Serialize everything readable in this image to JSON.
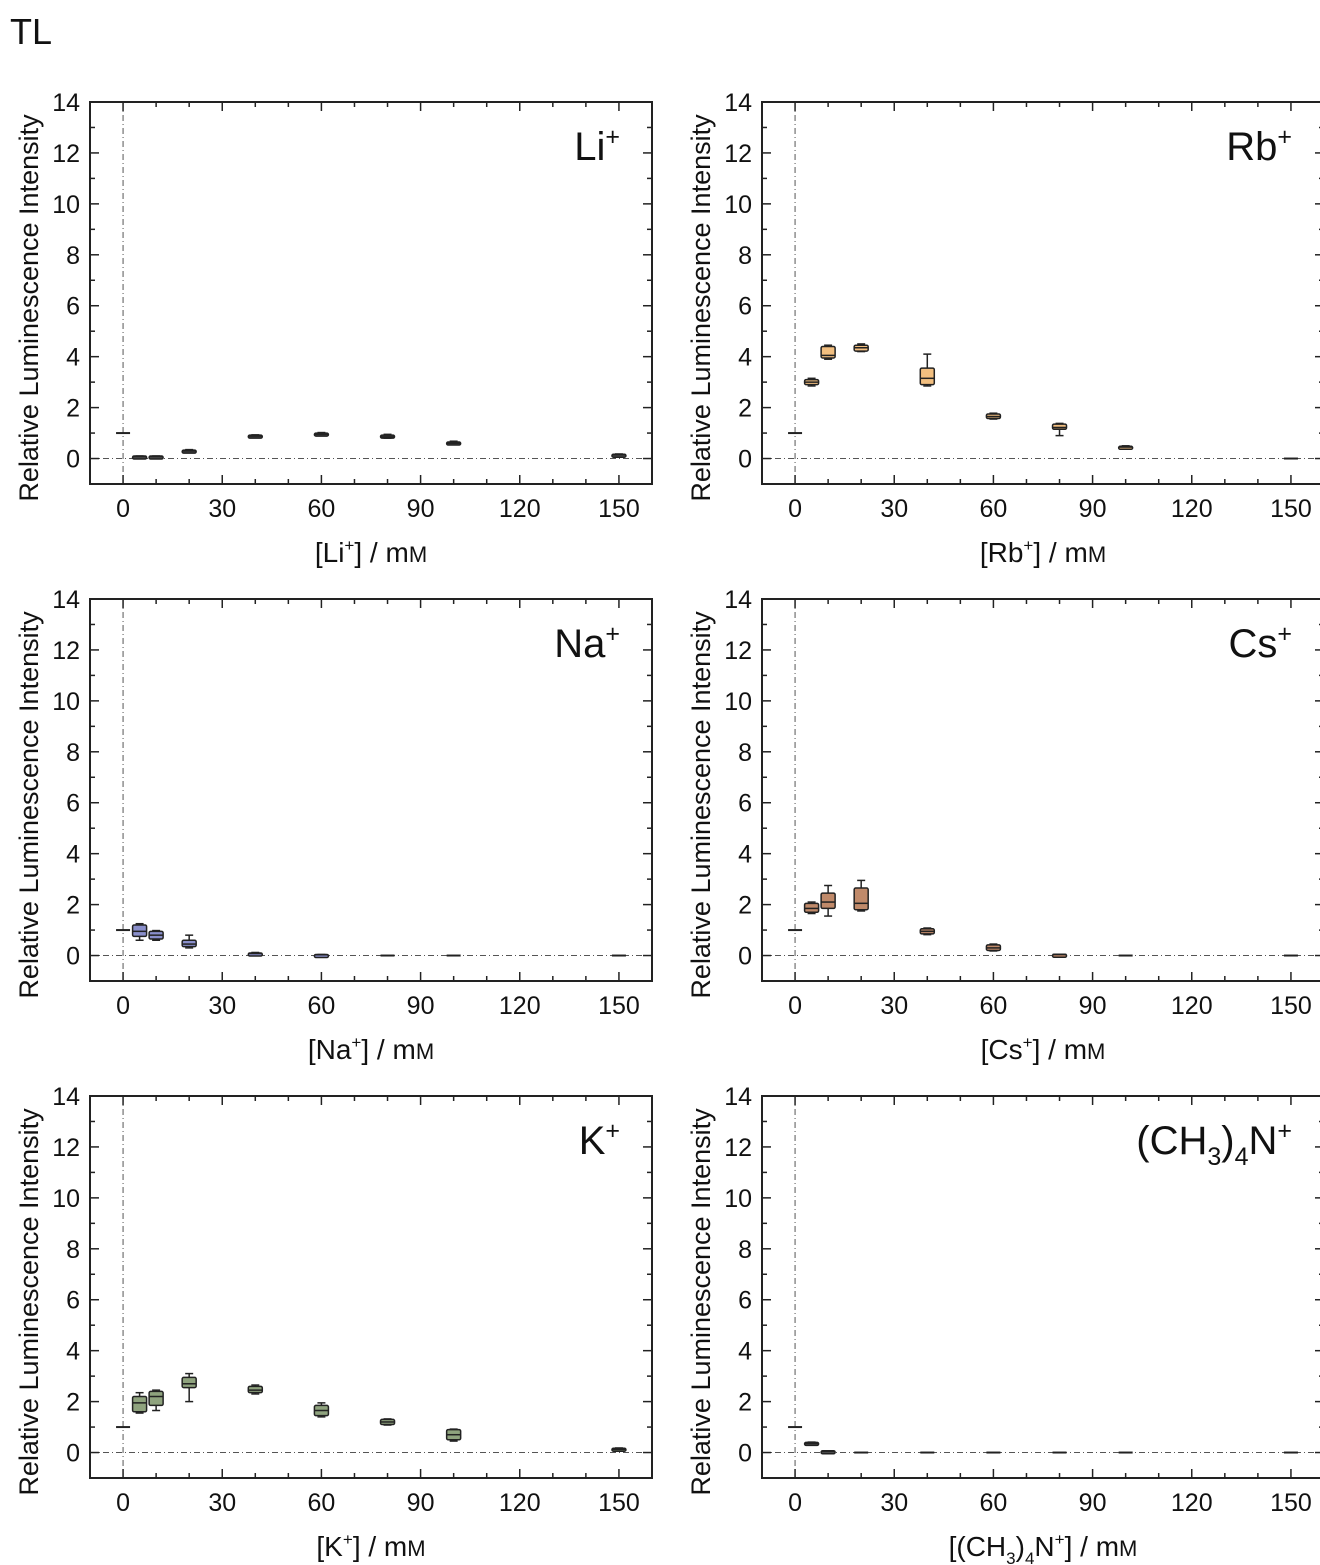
{
  "figure_label": "TL",
  "chart_data": [
    {
      "type": "box",
      "ion_label": {
        "base": "Li",
        "sup": "+"
      },
      "xlabel": {
        "pre": "[Li",
        "sup": "+",
        "post": "] / mM"
      },
      "ylabel": "Relative Luminescence Intensity",
      "xlim": [
        -10,
        160
      ],
      "ylim": [
        -1,
        14
      ],
      "xticks": [
        0,
        30,
        60,
        90,
        120,
        150
      ],
      "yticks": [
        0,
        2,
        4,
        6,
        8,
        10,
        12,
        14
      ],
      "reference_lines": {
        "x": 0,
        "y": 0
      },
      "fill_color": "#4a4a4a",
      "boxes": [
        {
          "x": 0,
          "min": 1.0,
          "q1": 1.0,
          "median": 1.0,
          "q3": 1.0,
          "max": 1.0
        },
        {
          "x": 5,
          "min": 0.08,
          "q1": 0.08,
          "median": 0.08,
          "q3": 0.1,
          "max": 0.1
        },
        {
          "x": 10,
          "min": 0.08,
          "q1": 0.08,
          "median": 0.08,
          "q3": 0.1,
          "max": 0.1
        },
        {
          "x": 20,
          "min": 0.25,
          "q1": 0.27,
          "median": 0.3,
          "q3": 0.33,
          "max": 0.35
        },
        {
          "x": 40,
          "min": 0.85,
          "q1": 0.87,
          "median": 0.88,
          "q3": 0.92,
          "max": 0.93
        },
        {
          "x": 60,
          "min": 0.9,
          "q1": 0.92,
          "median": 0.95,
          "q3": 1.0,
          "max": 1.02
        },
        {
          "x": 80,
          "min": 0.8,
          "q1": 0.82,
          "median": 0.85,
          "q3": 0.92,
          "max": 0.95
        },
        {
          "x": 100,
          "min": 0.55,
          "q1": 0.57,
          "median": 0.6,
          "q3": 0.65,
          "max": 0.68
        },
        {
          "x": 150,
          "min": 0.12,
          "q1": 0.13,
          "median": 0.15,
          "q3": 0.17,
          "max": 0.18
        }
      ]
    },
    {
      "type": "box",
      "ion_label": {
        "base": "Rb",
        "sup": "+"
      },
      "xlabel": {
        "pre": "[Rb",
        "sup": "+",
        "post": "] / mM"
      },
      "ylabel": "Relative Luminescence Intensity",
      "xlim": [
        -10,
        160
      ],
      "ylim": [
        -1,
        14
      ],
      "xticks": [
        0,
        30,
        60,
        90,
        120,
        150
      ],
      "yticks": [
        0,
        2,
        4,
        6,
        8,
        10,
        12,
        14
      ],
      "reference_lines": {
        "x": 0,
        "y": 0
      },
      "fill_color": "#f2bf80",
      "boxes": [
        {
          "x": 0,
          "min": 1.0,
          "q1": 1.0,
          "median": 1.0,
          "q3": 1.0,
          "max": 1.0
        },
        {
          "x": 5,
          "min": 2.85,
          "q1": 2.9,
          "median": 3.0,
          "q3": 3.1,
          "max": 3.15
        },
        {
          "x": 10,
          "min": 3.9,
          "q1": 3.95,
          "median": 4.05,
          "q3": 4.4,
          "max": 4.45
        },
        {
          "x": 20,
          "min": 4.2,
          "q1": 4.22,
          "median": 4.35,
          "q3": 4.45,
          "max": 4.5
        },
        {
          "x": 40,
          "min": 2.85,
          "q1": 2.9,
          "median": 3.15,
          "q3": 3.55,
          "max": 4.1
        },
        {
          "x": 60,
          "min": 1.55,
          "q1": 1.57,
          "median": 1.65,
          "q3": 1.75,
          "max": 1.78
        },
        {
          "x": 80,
          "min": 0.9,
          "q1": 1.15,
          "median": 1.22,
          "q3": 1.35,
          "max": 1.38
        },
        {
          "x": 100,
          "min": 0.42,
          "q1": 0.43,
          "median": 0.45,
          "q3": 0.48,
          "max": 0.5
        },
        {
          "x": 150,
          "min": 0.0,
          "q1": 0.0,
          "median": 0.0,
          "q3": 0.0,
          "max": 0.0
        }
      ]
    },
    {
      "type": "box",
      "ion_label": {
        "base": "Na",
        "sup": "+"
      },
      "xlabel": {
        "pre": "[Na",
        "sup": "+",
        "post": "] / mM"
      },
      "ylabel": "Relative Luminescence Intensity",
      "xlim": [
        -10,
        160
      ],
      "ylim": [
        -1,
        14
      ],
      "xticks": [
        0,
        30,
        60,
        90,
        120,
        150
      ],
      "yticks": [
        0,
        2,
        4,
        6,
        8,
        10,
        12,
        14
      ],
      "reference_lines": {
        "x": 0,
        "y": 0
      },
      "fill_color": "#8a8fcb",
      "boxes": [
        {
          "x": 0,
          "min": 1.0,
          "q1": 1.0,
          "median": 1.0,
          "q3": 1.0,
          "max": 1.0
        },
        {
          "x": 5,
          "min": 0.6,
          "q1": 0.75,
          "median": 0.95,
          "q3": 1.2,
          "max": 1.25
        },
        {
          "x": 10,
          "min": 0.6,
          "q1": 0.65,
          "median": 0.8,
          "q3": 0.95,
          "max": 0.98
        },
        {
          "x": 20,
          "min": 0.3,
          "q1": 0.35,
          "median": 0.45,
          "q3": 0.6,
          "max": 0.8
        },
        {
          "x": 40,
          "min": 0.05,
          "q1": 0.06,
          "median": 0.08,
          "q3": 0.1,
          "max": 0.12
        },
        {
          "x": 60,
          "min": 0.02,
          "q1": 0.02,
          "median": 0.03,
          "q3": 0.04,
          "max": 0.04
        },
        {
          "x": 80,
          "min": 0.0,
          "q1": 0.0,
          "median": 0.0,
          "q3": 0.0,
          "max": 0.0
        },
        {
          "x": 100,
          "min": 0.0,
          "q1": 0.0,
          "median": 0.0,
          "q3": 0.0,
          "max": 0.0
        },
        {
          "x": 150,
          "min": 0.0,
          "q1": 0.0,
          "median": 0.0,
          "q3": 0.0,
          "max": 0.0
        }
      ]
    },
    {
      "type": "box",
      "ion_label": {
        "base": "Cs",
        "sup": "+"
      },
      "xlabel": {
        "pre": "[Cs",
        "sup": "+",
        "post": "] / mM"
      },
      "ylabel": "Relative Luminescence Intensity",
      "xlim": [
        -10,
        160
      ],
      "ylim": [
        -1,
        14
      ],
      "xticks": [
        0,
        30,
        60,
        90,
        120,
        150
      ],
      "yticks": [
        0,
        2,
        4,
        6,
        8,
        10,
        12,
        14
      ],
      "reference_lines": {
        "x": 0,
        "y": 0
      },
      "fill_color": "#c08a6a",
      "boxes": [
        {
          "x": 0,
          "min": 1.0,
          "q1": 1.0,
          "median": 1.0,
          "q3": 1.0,
          "max": 1.0
        },
        {
          "x": 5,
          "min": 1.65,
          "q1": 1.7,
          "median": 1.85,
          "q3": 2.05,
          "max": 2.1
        },
        {
          "x": 10,
          "min": 1.55,
          "q1": 1.85,
          "median": 2.1,
          "q3": 2.45,
          "max": 2.75
        },
        {
          "x": 20,
          "min": 1.75,
          "q1": 1.8,
          "median": 2.05,
          "q3": 2.65,
          "max": 2.95
        },
        {
          "x": 40,
          "min": 0.82,
          "q1": 0.85,
          "median": 0.95,
          "q3": 1.05,
          "max": 1.08
        },
        {
          "x": 60,
          "min": 0.18,
          "q1": 0.2,
          "median": 0.3,
          "q3": 0.42,
          "max": 0.45
        },
        {
          "x": 80,
          "min": 0.03,
          "q1": 0.03,
          "median": 0.04,
          "q3": 0.05,
          "max": 0.05
        },
        {
          "x": 100,
          "min": 0.0,
          "q1": 0.0,
          "median": 0.0,
          "q3": 0.0,
          "max": 0.0
        },
        {
          "x": 150,
          "min": 0.0,
          "q1": 0.0,
          "median": 0.0,
          "q3": 0.0,
          "max": 0.0
        }
      ]
    },
    {
      "type": "box",
      "ion_label": {
        "base": "K",
        "sup": "+"
      },
      "xlabel": {
        "pre": "[K",
        "sup": "+",
        "post": "] / mM"
      },
      "ylabel": "Relative Luminescence Intensity",
      "xlim": [
        -10,
        160
      ],
      "ylim": [
        -1,
        14
      ],
      "xticks": [
        0,
        30,
        60,
        90,
        120,
        150
      ],
      "yticks": [
        0,
        2,
        4,
        6,
        8,
        10,
        12,
        14
      ],
      "reference_lines": {
        "x": 0,
        "y": 0
      },
      "fill_color": "#8fa37e",
      "boxes": [
        {
          "x": 0,
          "min": 1.0,
          "q1": 1.0,
          "median": 1.0,
          "q3": 1.0,
          "max": 1.0
        },
        {
          "x": 5,
          "min": 1.55,
          "q1": 1.6,
          "median": 1.95,
          "q3": 2.2,
          "max": 2.35
        },
        {
          "x": 10,
          "min": 1.65,
          "q1": 1.85,
          "median": 2.2,
          "q3": 2.4,
          "max": 2.45
        },
        {
          "x": 20,
          "min": 2.0,
          "q1": 2.55,
          "median": 2.7,
          "q3": 2.95,
          "max": 3.1
        },
        {
          "x": 40,
          "min": 2.3,
          "q1": 2.35,
          "median": 2.45,
          "q3": 2.6,
          "max": 2.65
        },
        {
          "x": 60,
          "min": 1.4,
          "q1": 1.45,
          "median": 1.65,
          "q3": 1.85,
          "max": 1.95
        },
        {
          "x": 80,
          "min": 1.08,
          "q1": 1.1,
          "median": 1.2,
          "q3": 1.3,
          "max": 1.32
        },
        {
          "x": 100,
          "min": 0.45,
          "q1": 0.5,
          "median": 0.7,
          "q3": 0.9,
          "max": 0.92
        },
        {
          "x": 150,
          "min": 0.08,
          "q1": 0.08,
          "median": 0.12,
          "q3": 0.17,
          "max": 0.18
        }
      ]
    },
    {
      "type": "box",
      "ion_label": {
        "base": "(CH",
        "sub1": "3",
        "mid": ")",
        "sub2": "4",
        "end": "N",
        "sup": "+"
      },
      "xlabel": {
        "pre": "[(CH",
        "sub1": "3",
        "mid": ")",
        "sub2": "4",
        "end": "N",
        "sup": "+",
        "post": "] / mM"
      },
      "ylabel": "Relative Luminescence Intensity",
      "xlim": [
        -10,
        160
      ],
      "ylim": [
        -1,
        14
      ],
      "xticks": [
        0,
        30,
        60,
        90,
        120,
        150
      ],
      "yticks": [
        0,
        2,
        4,
        6,
        8,
        10,
        12,
        14
      ],
      "reference_lines": {
        "x": 0,
        "y": 0
      },
      "fill_color": "#4a4a4a",
      "boxes": [
        {
          "x": 0,
          "min": 1.0,
          "q1": 1.0,
          "median": 1.0,
          "q3": 1.0,
          "max": 1.0
        },
        {
          "x": 5,
          "min": 0.33,
          "q1": 0.34,
          "median": 0.36,
          "q3": 0.4,
          "max": 0.41
        },
        {
          "x": 10,
          "min": 0.03,
          "q1": 0.04,
          "median": 0.05,
          "q3": 0.07,
          "max": 0.07
        },
        {
          "x": 20,
          "min": 0.0,
          "q1": 0.0,
          "median": 0.0,
          "q3": 0.0,
          "max": 0.0
        },
        {
          "x": 40,
          "min": 0.0,
          "q1": 0.0,
          "median": 0.0,
          "q3": 0.0,
          "max": 0.0
        },
        {
          "x": 60,
          "min": 0.0,
          "q1": 0.0,
          "median": 0.0,
          "q3": 0.0,
          "max": 0.0
        },
        {
          "x": 80,
          "min": 0.0,
          "q1": 0.0,
          "median": 0.0,
          "q3": 0.0,
          "max": 0.0
        },
        {
          "x": 100,
          "min": 0.0,
          "q1": 0.0,
          "median": 0.0,
          "q3": 0.0,
          "max": 0.0
        },
        {
          "x": 150,
          "min": 0.0,
          "q1": 0.0,
          "median": 0.0,
          "q3": 0.0,
          "max": 0.0
        }
      ]
    }
  ]
}
